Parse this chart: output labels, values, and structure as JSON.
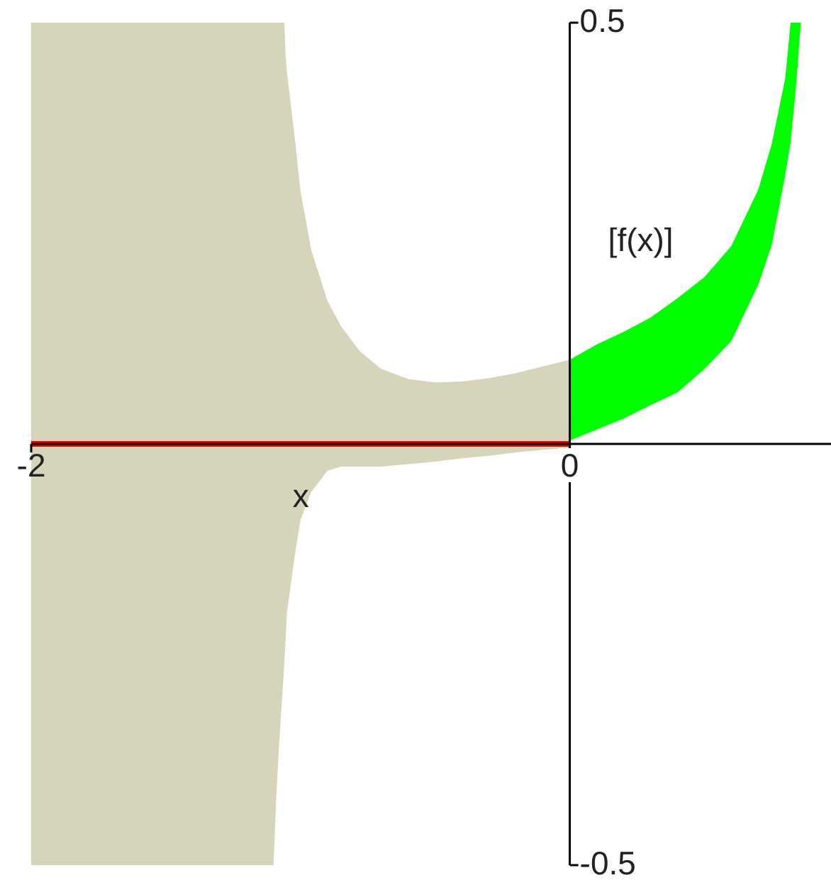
{
  "chart_data": {
    "type": "area",
    "xlabel": "x",
    "ylabel": "[f(x)]",
    "xlim": [
      -2,
      0.97
    ],
    "ylim": [
      -0.5,
      0.5
    ],
    "xticks": [
      -2,
      0
    ],
    "yticks": [
      -0.5,
      0.5
    ],
    "grid": false,
    "legend": false,
    "marker": "none",
    "series": [
      {
        "type": "area",
        "color": "#d6d5bc",
        "x": [
          -2,
          -1.1,
          -1.09,
          -1.08,
          -1.06,
          -1.055,
          -1.05,
          -1.02,
          -1.0,
          -0.96,
          -0.9,
          -0.85,
          -0.78,
          -0.7,
          -0.6,
          -0.5,
          -0.4,
          -0.3,
          -0.2,
          -0.1,
          0
        ],
        "values": [
          null,
          null,
          null,
          null,
          null,
          null,
          null,
          null,
          null,
          null,
          null,
          null,
          null,
          null,
          null,
          null,
          null,
          null,
          null,
          null,
          null
        ],
        "upper": [
          0.5,
          0.5,
          0.5,
          0.5,
          0.5,
          0.46,
          0.44,
          0.36,
          0.3,
          0.23,
          0.17,
          0.14,
          0.11,
          0.089,
          0.077,
          0.073,
          0.074,
          0.078,
          0.084,
          0.092,
          0.1
        ],
        "lower": [
          -0.5,
          -0.5,
          -0.42,
          -0.36,
          -0.26,
          -0.23,
          -0.2,
          -0.13,
          -0.09,
          -0.057,
          -0.032,
          -0.027,
          -0.027,
          -0.027,
          -0.024,
          -0.021,
          -0.017,
          -0.014,
          -0.01,
          -0.007,
          -0.005
        ]
      },
      {
        "type": "area",
        "color": "#00ff00",
        "x": [
          0,
          0.1,
          0.2,
          0.3,
          0.4,
          0.5,
          0.6,
          0.7,
          0.75,
          0.8,
          0.82,
          0.84,
          0.858
        ],
        "values": [
          null,
          null,
          null,
          null,
          null,
          null,
          null,
          null,
          null,
          null,
          null,
          null,
          null
        ],
        "lower": [
          0.004,
          0.017,
          0.03,
          0.046,
          0.061,
          0.089,
          0.122,
          0.189,
          0.236,
          0.319,
          0.358,
          0.424,
          0.5
        ],
        "upper": [
          0.1,
          0.118,
          0.133,
          0.15,
          0.173,
          0.198,
          0.235,
          0.302,
          0.356,
          0.434,
          0.5,
          0.5,
          0.5
        ]
      },
      {
        "type": "line",
        "color": "#ff0000",
        "x": [
          -2,
          0
        ],
        "values": [
          0,
          0
        ]
      }
    ]
  }
}
